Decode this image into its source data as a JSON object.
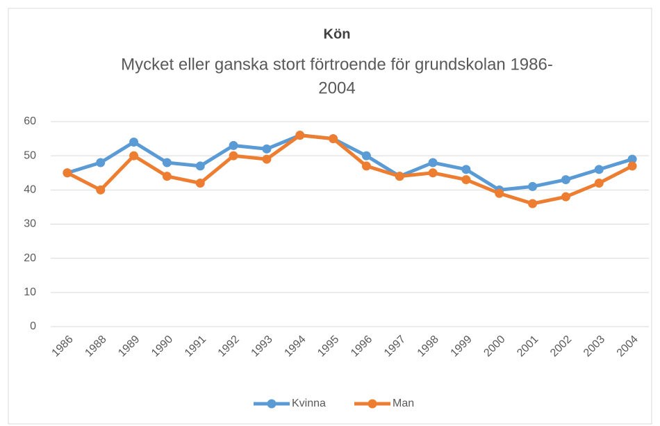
{
  "chart_data": {
    "type": "line",
    "title": "Kön",
    "subtitle": [
      "Mycket eller ganska stort förtroende för grundskolan 1986-",
      "2004"
    ],
    "categories": [
      "1986",
      "1988",
      "1989",
      "1990",
      "1991",
      "1992",
      "1993",
      "1994",
      "1995",
      "1996",
      "1997",
      "1998",
      "1999",
      "2000",
      "2001",
      "2002",
      "2003",
      "2004"
    ],
    "series": [
      {
        "name": "Kvinna",
        "color": "#5b9bd5",
        "values": [
          45,
          48,
          54,
          48,
          47,
          53,
          52,
          56,
          55,
          50,
          44,
          48,
          46,
          40,
          41,
          43,
          46,
          49
        ]
      },
      {
        "name": "Man",
        "color": "#ed7d31",
        "values": [
          45,
          40,
          50,
          44,
          42,
          50,
          49,
          56,
          55,
          47,
          44,
          45,
          43,
          39,
          36,
          38,
          42,
          47
        ]
      }
    ],
    "ylim": [
      0,
      60
    ],
    "yticks": [
      0,
      10,
      20,
      30,
      40,
      50,
      60
    ],
    "grid": true,
    "legend": "bottom"
  }
}
